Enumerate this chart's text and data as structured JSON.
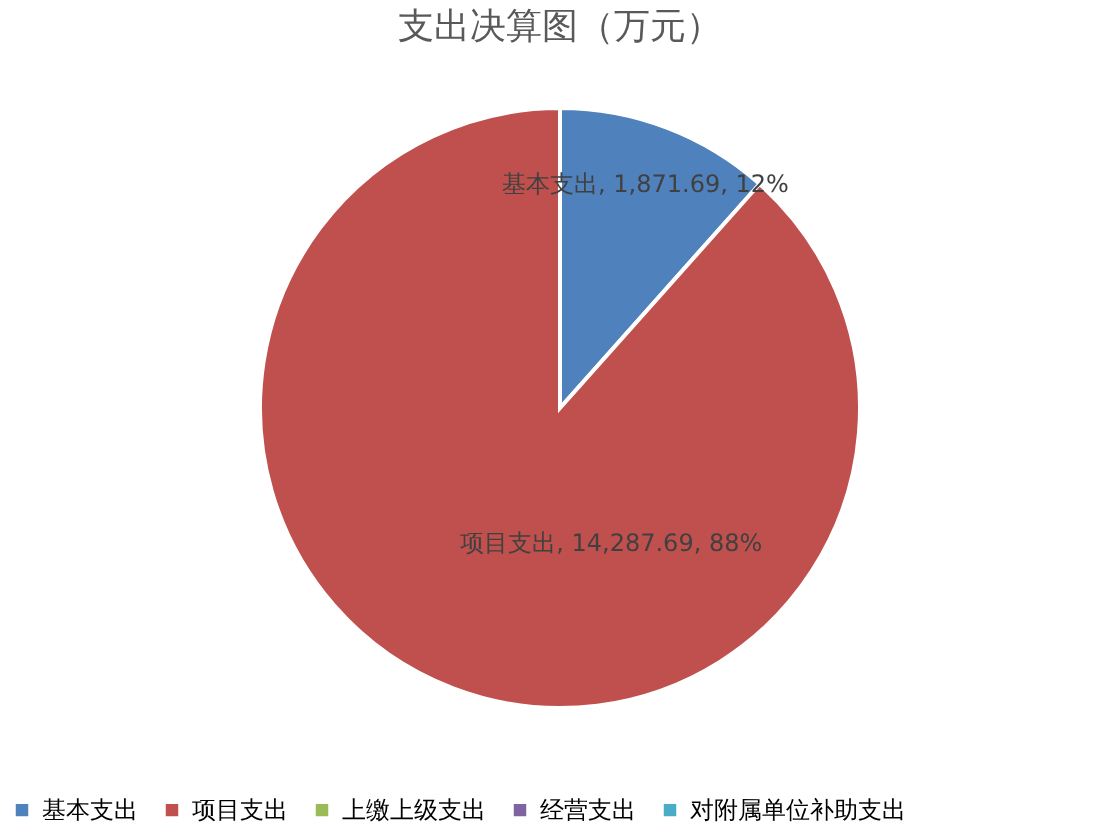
{
  "chart_data": {
    "type": "pie",
    "title": "支出决算图（万元）",
    "categories": [
      "基本支出",
      "项目支出",
      "上缴上级支出",
      "经营支出",
      "对附属单位补助支出"
    ],
    "values": [
      1871.69,
      14287.69,
      0,
      0,
      0
    ],
    "colors": [
      "#4f81bd",
      "#c0504d",
      "#9bbb59",
      "#8064a2",
      "#4bacc6"
    ],
    "value_labels": [
      "基本支出, 1,871.69, 12%",
      "项目支出, 14,287.69, 88%",
      null,
      null,
      null
    ],
    "legend": "bottom"
  }
}
